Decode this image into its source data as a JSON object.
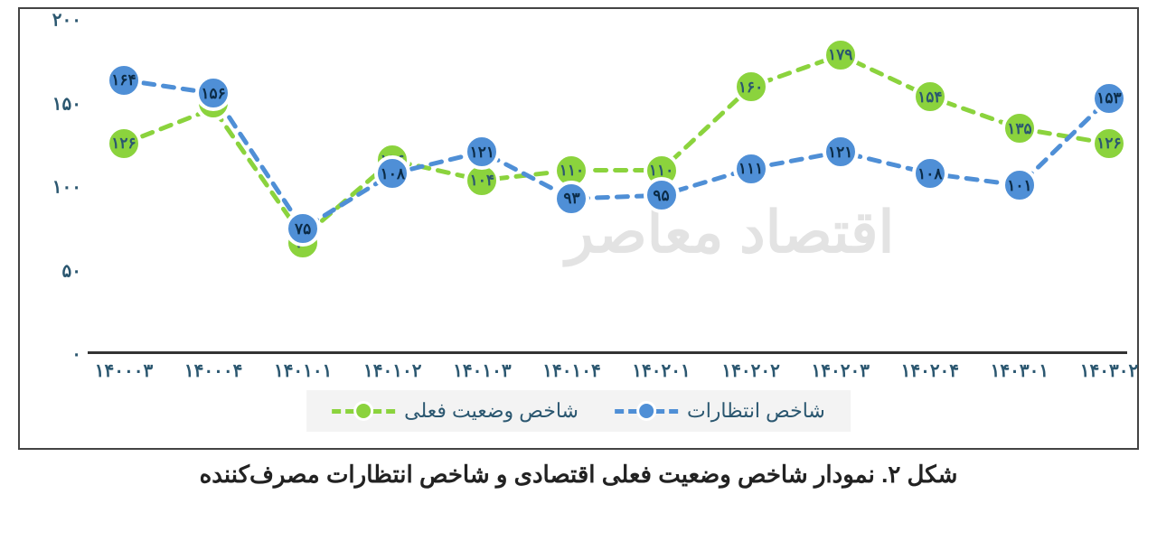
{
  "chart": {
    "type": "line",
    "background_color": "#ffffff",
    "border_color": "#444444",
    "axis_color": "#333333",
    "tick_label_color": "#2b5770",
    "tick_fontsize": 20,
    "y_axis": {
      "min": 0,
      "max": 200,
      "step": 50,
      "ticks_persian": [
        "۰",
        "۵۰",
        "۱۰۰",
        "۱۵۰",
        "۲۰۰"
      ]
    },
    "x_categories": [
      "۱۴۰۰۰۳",
      "۱۴۰۰۰۴",
      "۱۴۰۱۰۱",
      "۱۴۰۱۰۲",
      "۱۴۰۱۰۳",
      "۱۴۰۱۰۴",
      "۱۴۰۲۰۱",
      "۱۴۰۲۰۲",
      "۱۴۰۲۰۳",
      "۱۴۰۲۰۴",
      "۱۴۰۳۰۱",
      "۱۴۰۳۰۲"
    ],
    "line_dash": "12 10",
    "line_width": 5,
    "series": [
      {
        "id": "current",
        "label": "شاخص وضعیت فعلی",
        "color": "#8bd33d",
        "marker_fill": "#8bd33d",
        "marker_stroke": "#ffffff",
        "marker_stroke_width": 4,
        "marker_radius": 20,
        "label_text_color": "#2b5770",
        "label_fontsize": 17,
        "values": [
          126,
          147,
          70,
          116,
          104,
          110,
          110,
          160,
          179,
          154,
          135,
          126
        ],
        "value_labels": [
          "۱۲۶",
          "۱۴۷",
          "۷۰",
          "۱۱۶",
          "۱۰۴",
          "۱۱۰",
          "۱۱۰",
          "۱۶۰",
          "۱۷۹",
          "۱۵۴",
          "۱۳۵",
          "۱۲۶"
        ],
        "label_offset": [
          0,
          -6,
          6,
          0,
          0,
          0,
          0,
          0,
          0,
          0,
          0,
          0
        ]
      },
      {
        "id": "expect",
        "label": "شاخص انتظارات",
        "color": "#4f8fd6",
        "marker_fill": "#4f8fd6",
        "marker_stroke": "#ffffff",
        "marker_stroke_width": 4,
        "marker_radius": 20,
        "label_text_color": "#0b2b46",
        "label_fontsize": 17,
        "values": [
          164,
          156,
          75,
          108,
          121,
          93,
          95,
          111,
          121,
          108,
          101,
          153
        ],
        "value_labels": [
          "۱۶۴",
          "۱۵۶",
          "۷۵",
          "۱۰۸",
          "۱۲۱",
          "۹۳",
          "۹۵",
          "۱۱۱",
          "۱۲۱",
          "۱۰۸",
          "۱۰۱",
          "۱۵۳"
        ],
        "label_offset": [
          0,
          0,
          0,
          0,
          0,
          0,
          0,
          0,
          0,
          0,
          0,
          0
        ]
      }
    ],
    "legend": {
      "background": "#f3f3f3",
      "fontsize": 22,
      "text_color": "#2b5770"
    },
    "watermark": {
      "text": "اقتصاد معاصر",
      "color": "#d8d8d8"
    }
  },
  "caption": "شکل ۲. نمودار شاخص وضعیت فعلی اقتصادی و شاخص انتظارات مصرف‌کننده"
}
